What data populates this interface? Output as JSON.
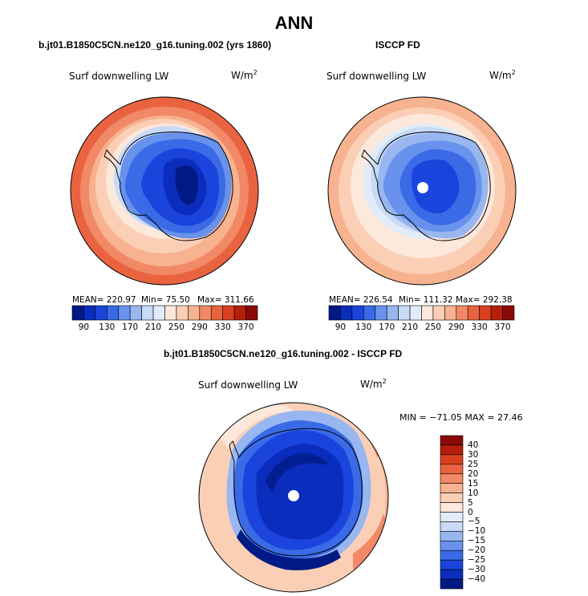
{
  "title": "ANN",
  "colors": {
    "diverging": [
      "#001a85",
      "#0a2dbe",
      "#1a44dc",
      "#3a6ae6",
      "#6892ec",
      "#98b6f0",
      "#c8daf6",
      "#e2ecf8",
      "#fde8dc",
      "#fbcfb6",
      "#f7b28f",
      "#f28966",
      "#ea6340",
      "#d8401e",
      "#b71e0b",
      "#8a0a0a"
    ],
    "diff": [
      "#001a85",
      "#0a2dbe",
      "#1a44dc",
      "#3a6ae6",
      "#6892ec",
      "#98b6f0",
      "#c8daf6",
      "#e2ecf8",
      "#fde8dc",
      "#fbcfb6",
      "#f7b28f",
      "#f28966",
      "#ea6340",
      "#d8401e",
      "#b71e0b",
      "#8a0a0a"
    ]
  },
  "panels": [
    {
      "header": "b.jt01.B1850C5CN.ne120_g16.tuning.002 (yrs 1860)",
      "variable": "Surf downwelling LW",
      "units": "W/m",
      "units_exp": "2",
      "mean_label": "MEAN= 220.97",
      "min_label": "Min=  75.50",
      "max_label": "Max= 311.66",
      "ticks": [
        "90",
        "130",
        "170",
        "210",
        "250",
        "290",
        "330",
        "370"
      ]
    },
    {
      "header": "ISCCP FD",
      "variable": "Surf downwelling LW",
      "units": "W/m",
      "units_exp": "2",
      "mean_label": "MEAN= 226.54",
      "min_label": "Min= 111.32",
      "max_label": "Max= 292.38",
      "ticks": [
        "90",
        "130",
        "170",
        "210",
        "250",
        "290",
        "330",
        "370"
      ]
    }
  ],
  "diff_panel": {
    "header": "b.jt01.B1850C5CN.ne120_g16.tuning.002 - ISCCP FD",
    "variable": "Surf downwelling LW",
    "units": "W/m",
    "units_exp": "2",
    "minmax_label": "MIN = −71.05 MAX =  27.46",
    "ticks": [
      "40",
      "30",
      "25",
      "20",
      "15",
      "10",
      "5",
      "0",
      "−5",
      "−10",
      "−15",
      "−20",
      "−25",
      "−30",
      "−40"
    ]
  }
}
